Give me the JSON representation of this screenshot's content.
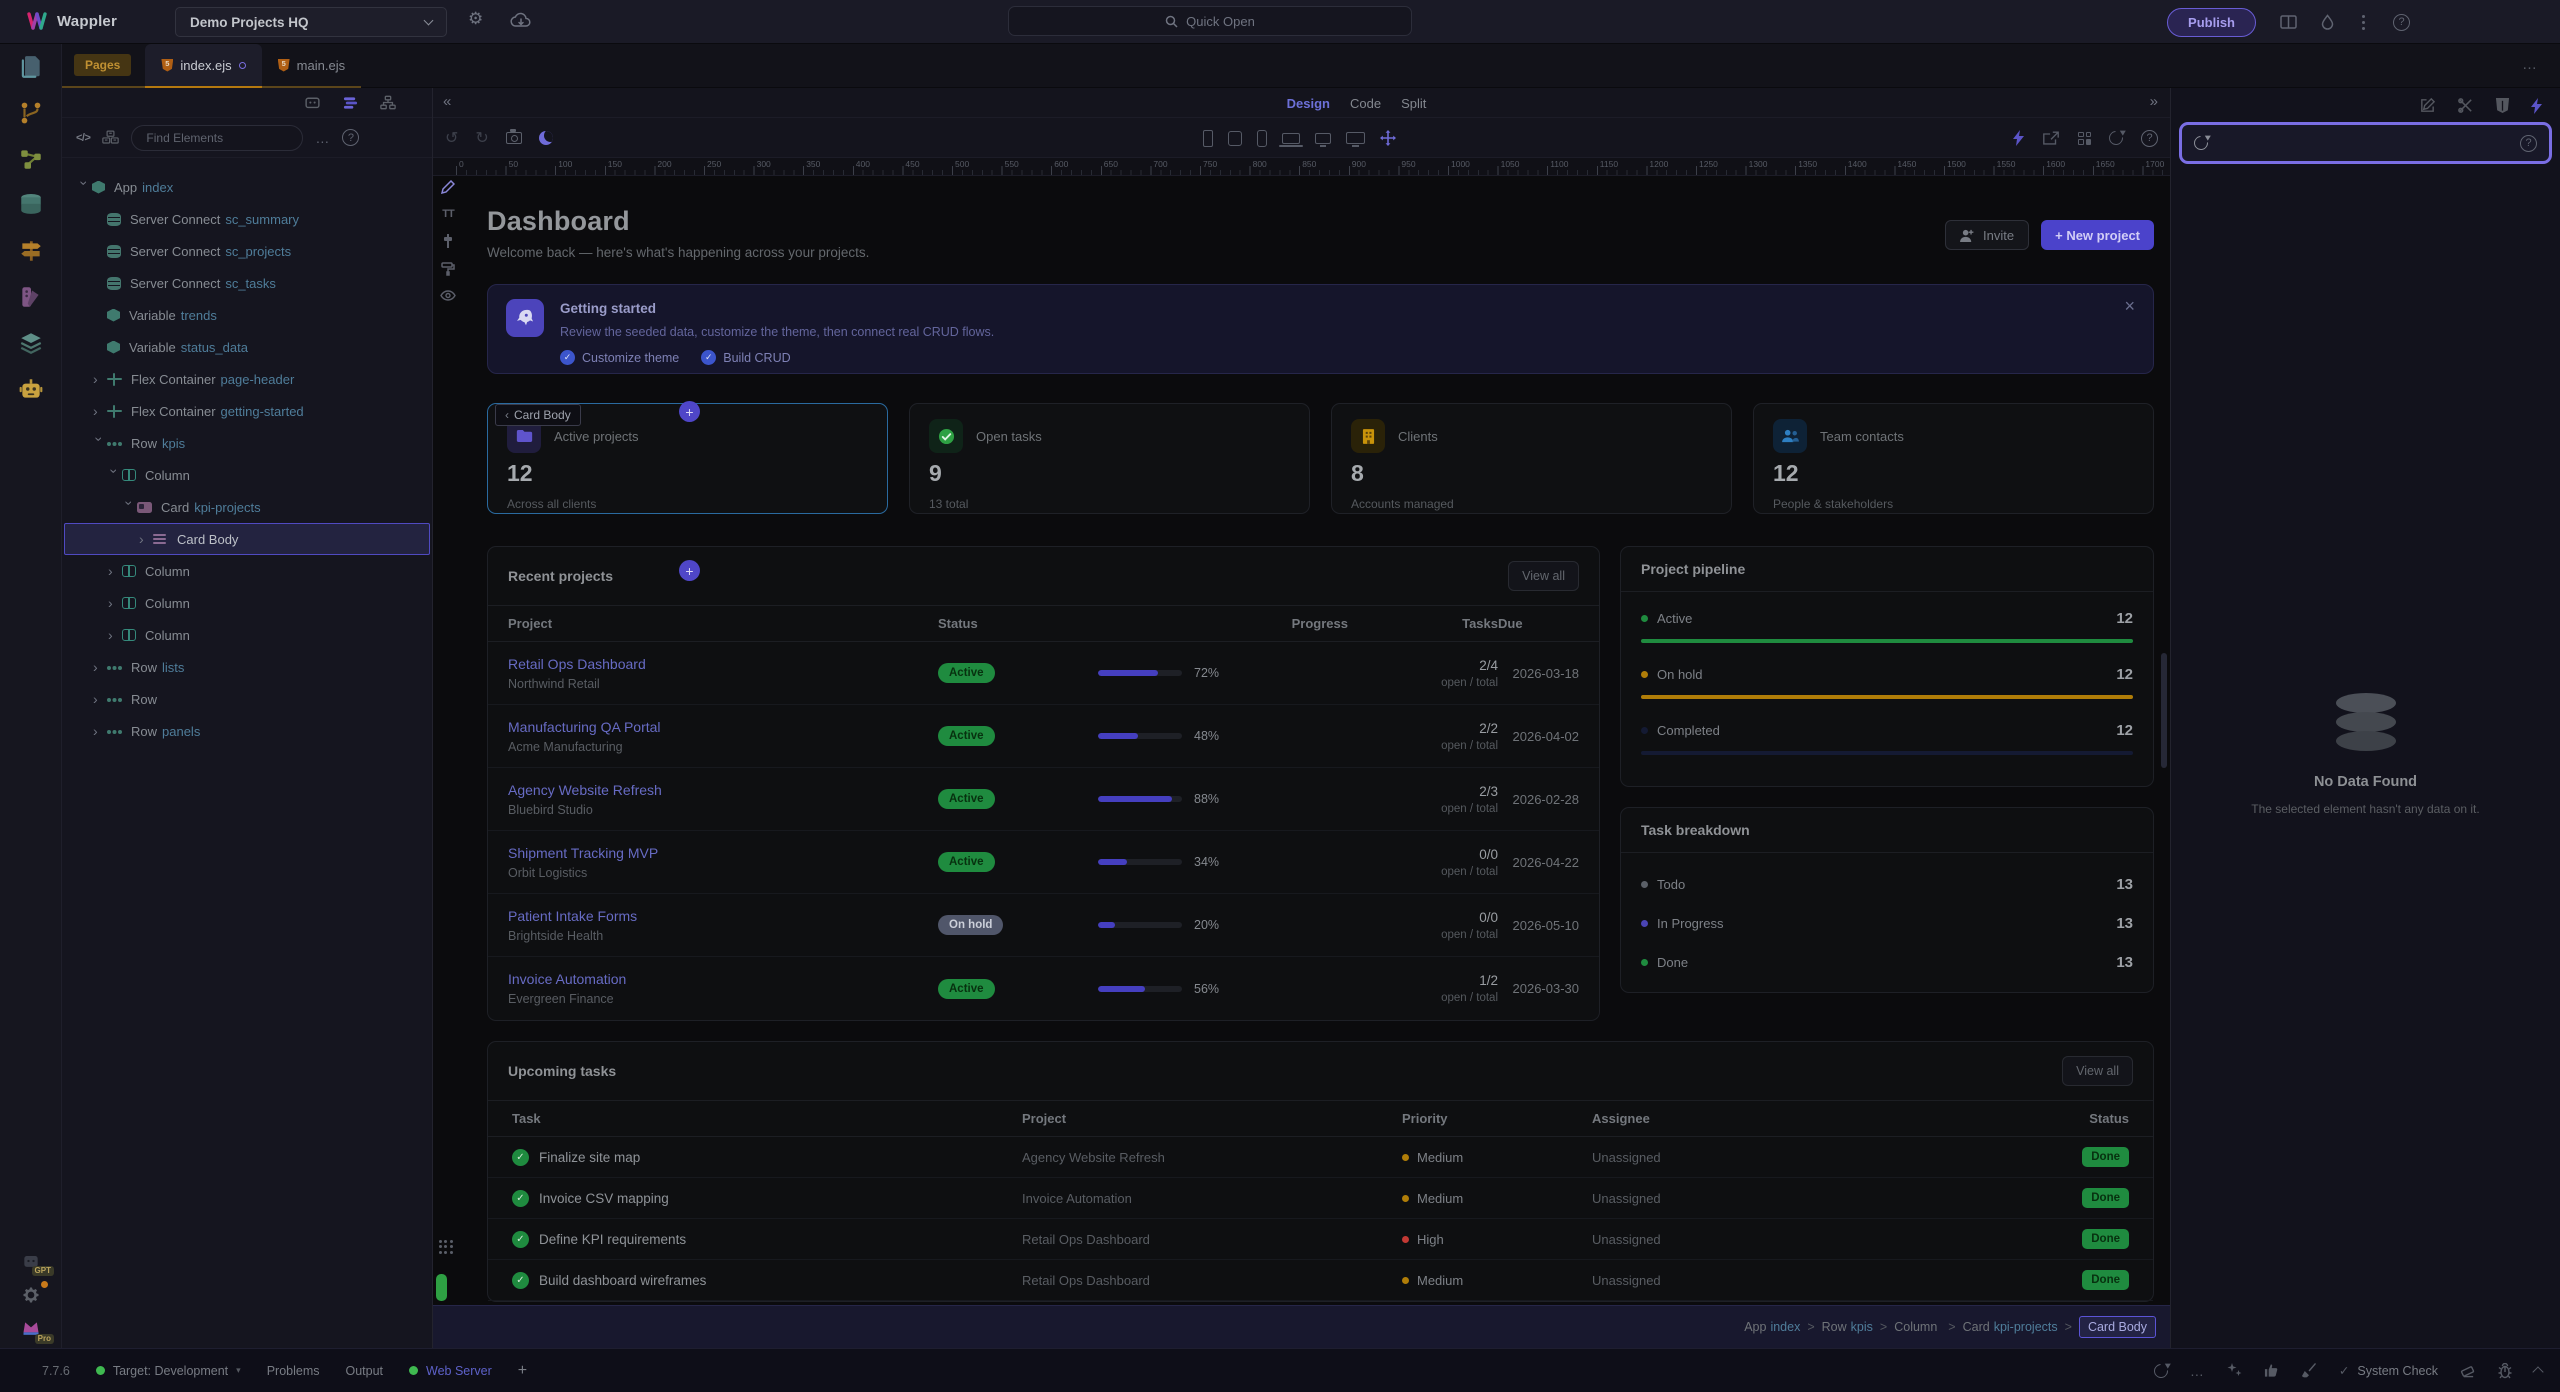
{
  "topbar": {
    "brand": "Wappler",
    "project_name": "Demo Projects HQ",
    "quick_open_placeholder": "Quick Open",
    "publish_label": "Publish"
  },
  "tabbar": {
    "pages_label": "Pages",
    "tabs": [
      {
        "label": "index.ejs"
      },
      {
        "label": "main.ejs"
      }
    ]
  },
  "structure_panel": {
    "find_placeholder": "Find Elements",
    "code_glyph": "</>",
    "tree": [
      {
        "depth": 0,
        "chev": "down",
        "icon": "app",
        "label": "App",
        "name": "index"
      },
      {
        "depth": 1,
        "chev": null,
        "icon": "database",
        "label": "Server Connect",
        "name": "sc_summary"
      },
      {
        "depth": 1,
        "chev": null,
        "icon": "database",
        "label": "Server Connect",
        "name": "sc_projects"
      },
      {
        "depth": 1,
        "chev": null,
        "icon": "database",
        "label": "Server Connect",
        "name": "sc_tasks"
      },
      {
        "depth": 1,
        "chev": null,
        "icon": "app",
        "label": "Variable",
        "name": "trends"
      },
      {
        "depth": 1,
        "chev": null,
        "icon": "app",
        "label": "Variable",
        "name": "status_data"
      },
      {
        "depth": 1,
        "chev": "right",
        "icon": "flex",
        "label": "Flex Container",
        "name": "page-header"
      },
      {
        "depth": 1,
        "chev": "right",
        "icon": "flex",
        "label": "Flex Container",
        "name": "getting-started"
      },
      {
        "depth": 1,
        "chev": "down",
        "icon": "row",
        "label": "Row",
        "name": "kpis"
      },
      {
        "depth": 2,
        "chev": "down",
        "icon": "column",
        "label": "Column",
        "name": ""
      },
      {
        "depth": 3,
        "chev": "down",
        "icon": "card",
        "label": "Card",
        "name": "kpi-projects"
      },
      {
        "depth": 4,
        "chev": "right",
        "icon": "cardbody",
        "label": "Card Body",
        "name": "",
        "selected": true
      },
      {
        "depth": 2,
        "chev": "right",
        "icon": "column",
        "label": "Column",
        "name": ""
      },
      {
        "depth": 2,
        "chev": "right",
        "icon": "column",
        "label": "Column",
        "name": ""
      },
      {
        "depth": 2,
        "chev": "right",
        "icon": "column",
        "label": "Column",
        "name": ""
      },
      {
        "depth": 1,
        "chev": "right",
        "icon": "row",
        "label": "Row",
        "name": "lists"
      },
      {
        "depth": 1,
        "chev": "right",
        "icon": "row",
        "label": "Row",
        "name": ""
      },
      {
        "depth": 1,
        "chev": "right",
        "icon": "row",
        "label": "Row",
        "name": "panels"
      }
    ]
  },
  "design_bar": {
    "modes": [
      "Design",
      "Code",
      "Split"
    ],
    "active_mode": "Design"
  },
  "ruler": {
    "labels": [
      0,
      50,
      100,
      150,
      200,
      250,
      300,
      350,
      400,
      450,
      500,
      550,
      600,
      650,
      700,
      750,
      800,
      850,
      900,
      950,
      1000,
      1050,
      1100,
      1150,
      1200,
      1250,
      1300,
      1350,
      1400,
      1450,
      1500,
      1550,
      1600,
      1650,
      1700
    ]
  },
  "page": {
    "title": "Dashboard",
    "subtitle": "Welcome back — here's what's happening across your projects.",
    "invite_label": "Invite",
    "new_project_label": "+ New project",
    "banner": {
      "title": "Getting started",
      "description": "Review the seeded data, customize the theme, then connect real CRUD flows.",
      "checks": [
        "Customize theme",
        "Build CRUD"
      ]
    },
    "selection_tag": "Card Body",
    "kpis": [
      {
        "label": "Active projects",
        "value": "12",
        "caption": "Across all clients"
      },
      {
        "label": "Open tasks",
        "value": "9",
        "caption": "13 total"
      },
      {
        "label": "Clients",
        "value": "8",
        "caption": "Accounts managed"
      },
      {
        "label": "Team contacts",
        "value": "12",
        "caption": "People & stakeholders"
      }
    ],
    "recent": {
      "title": "Recent projects",
      "view_all": "View all",
      "columns": [
        "Project",
        "Status",
        "Progress",
        "Tasks",
        "Due"
      ],
      "tasks_caption": "open / total",
      "rows": [
        {
          "name": "Retail Ops Dashboard",
          "client": "Northwind Retail",
          "status": "Active",
          "status_type": "active",
          "progress": 72,
          "progress_label": "72%",
          "tasks": "2/4",
          "due": "2026-03-18"
        },
        {
          "name": "Manufacturing QA Portal",
          "client": "Acme Manufacturing",
          "status": "Active",
          "status_type": "active",
          "progress": 48,
          "progress_label": "48%",
          "tasks": "2/2",
          "due": "2026-04-02"
        },
        {
          "name": "Agency Website Refresh",
          "client": "Bluebird Studio",
          "status": "Active",
          "status_type": "active",
          "progress": 88,
          "progress_label": "88%",
          "tasks": "2/3",
          "due": "2026-02-28"
        },
        {
          "name": "Shipment Tracking MVP",
          "client": "Orbit Logistics",
          "status": "Active",
          "status_type": "active",
          "progress": 34,
          "progress_label": "34%",
          "tasks": "0/0",
          "due": "2026-04-22"
        },
        {
          "name": "Patient Intake Forms",
          "client": "Brightside Health",
          "status": "On hold",
          "status_type": "onhold",
          "progress": 20,
          "progress_label": "20%",
          "tasks": "0/0",
          "due": "2026-05-10"
        },
        {
          "name": "Invoice Automation",
          "client": "Evergreen Finance",
          "status": "Active",
          "status_type": "active",
          "progress": 56,
          "progress_label": "56%",
          "tasks": "1/2",
          "due": "2026-03-30"
        }
      ]
    },
    "pipeline": {
      "title": "Project pipeline",
      "items": [
        {
          "label": "Active",
          "value": 12,
          "color": "#1f8b3f"
        },
        {
          "label": "On hold",
          "value": 12,
          "color": "#b07d08"
        },
        {
          "label": "Completed",
          "value": 12,
          "color": "#141a33"
        }
      ]
    },
    "breakdown": {
      "title": "Task breakdown",
      "items": [
        {
          "label": "Todo",
          "value": 13,
          "color": "#5b6068"
        },
        {
          "label": "In Progress",
          "value": 13,
          "color": "#4a44b4"
        },
        {
          "label": "Done",
          "value": 13,
          "color": "#1f8b3f"
        }
      ]
    },
    "upcoming": {
      "title": "Upcoming tasks",
      "view_all": "View all",
      "columns": [
        "Task",
        "Project",
        "Priority",
        "Assignee",
        "Status"
      ],
      "rows": [
        {
          "task": "Finalize site map",
          "project": "Agency Website Refresh",
          "priority": "Medium",
          "priority_color": "#b07d08",
          "assignee": "Unassigned",
          "status": "Done"
        },
        {
          "task": "Invoice CSV mapping",
          "project": "Invoice Automation",
          "priority": "Medium",
          "priority_color": "#b07d08",
          "assignee": "Unassigned",
          "status": "Done"
        },
        {
          "task": "Define KPI requirements",
          "project": "Retail Ops Dashboard",
          "priority": "High",
          "priority_color": "#c23934",
          "assignee": "Unassigned",
          "status": "Done"
        },
        {
          "task": "Build dashboard wireframes",
          "project": "Retail Ops Dashboard",
          "priority": "Medium",
          "priority_color": "#b07d08",
          "assignee": "Unassigned",
          "status": "Done"
        }
      ]
    },
    "breadcrumb": {
      "separator": ">",
      "items": [
        {
          "prefix": "App",
          "name": "index"
        },
        {
          "prefix": "Row",
          "name": "kpis"
        },
        {
          "prefix": "Column",
          "name": ""
        },
        {
          "prefix": "Card",
          "name": "kpi-projects"
        }
      ],
      "current": "Card Body"
    }
  },
  "right_panel": {
    "no_data_title": "No Data Found",
    "no_data_text": "The selected element hasn't any data on it."
  },
  "statusbar": {
    "version": "7.7.6",
    "target_label": "Target: Development",
    "problems_label": "Problems",
    "output_label": "Output",
    "web_server_label": "Web Server",
    "system_check_label": "System Check"
  },
  "rail_badges": {
    "gpt": "GPT",
    "pro": "Pro"
  }
}
